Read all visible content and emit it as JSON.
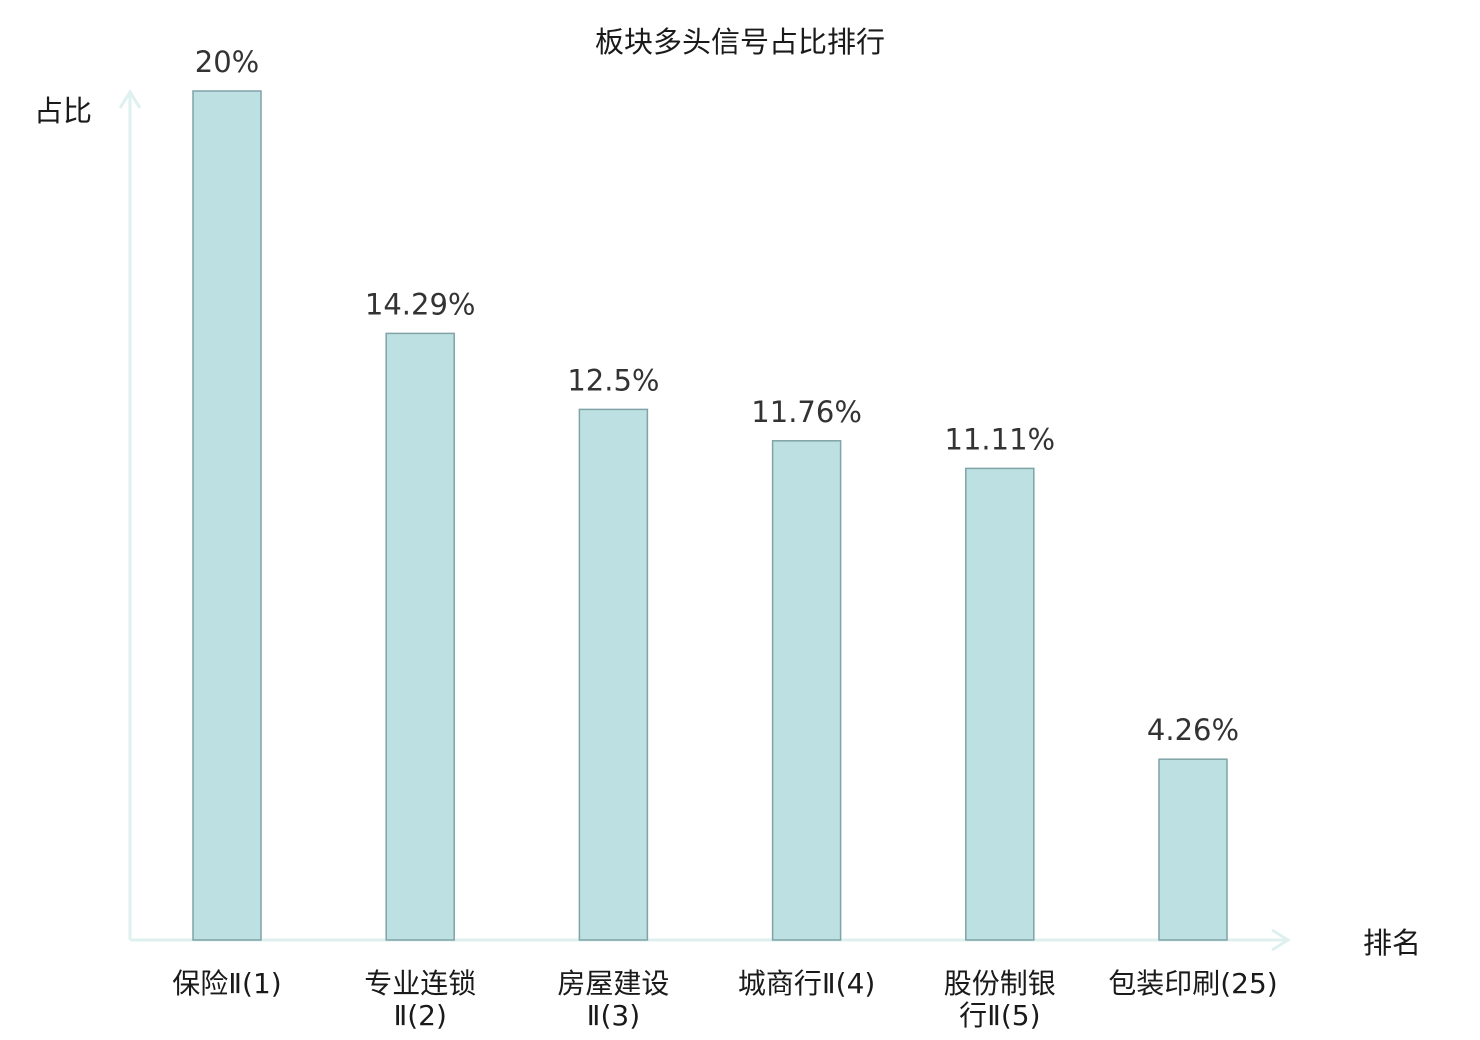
{
  "chart_data": {
    "type": "bar",
    "title": "板块多头信号占比排行",
    "xlabel": "排名",
    "ylabel": "占比",
    "categories": [
      [
        "保险Ⅱ(1)"
      ],
      [
        "专业连锁",
        "Ⅱ(2)"
      ],
      [
        "房屋建设",
        "Ⅱ(3)"
      ],
      [
        "城商行Ⅱ(4)"
      ],
      [
        "股份制银",
        "行Ⅱ(5)"
      ],
      [
        "包装印刷(25)"
      ]
    ],
    "values": [
      20,
      14.29,
      12.5,
      11.76,
      11.11,
      4.26
    ],
    "value_labels": [
      "20%",
      "14.29%",
      "12.5%",
      "11.76%",
      "11.11%",
      "4.26%"
    ],
    "highlight_index": 5,
    "ylim": [
      0,
      20
    ],
    "grid": false,
    "colors": {
      "bar_fill": "#bde0e2",
      "bar_stroke": "#7fa3a6",
      "axis": "#dff1ef",
      "highlight_text": "#e0161b",
      "text": "#1a1a1a"
    }
  }
}
